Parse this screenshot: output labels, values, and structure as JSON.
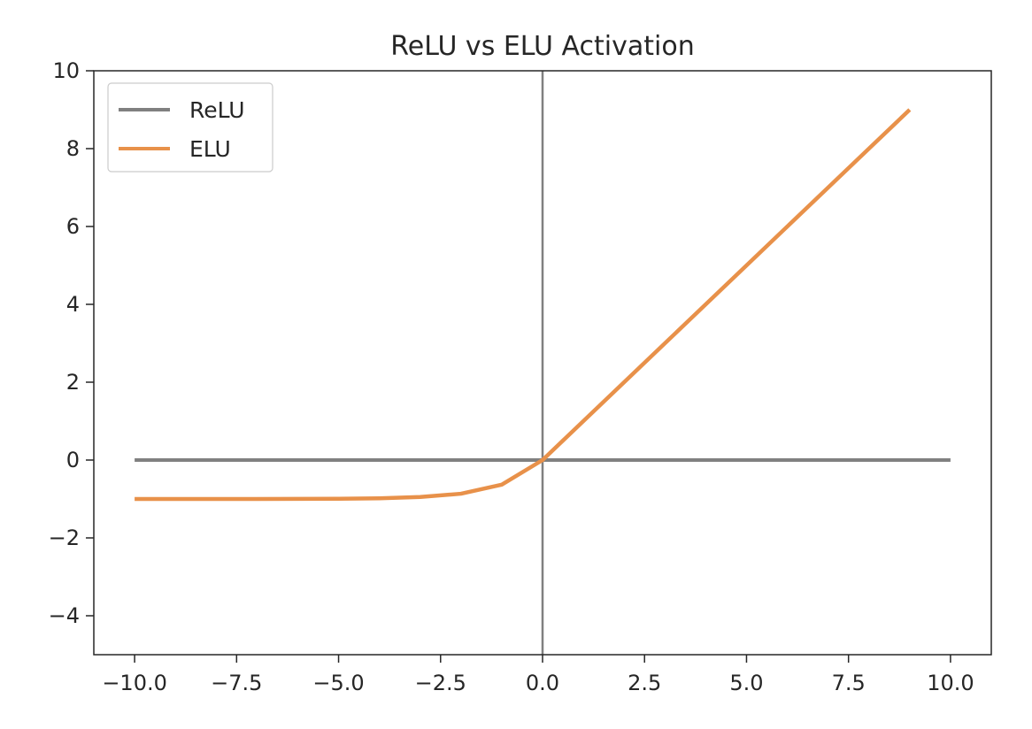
{
  "chart_data": {
    "type": "line",
    "title": "ReLU vs ELU Activation",
    "xlabel": "",
    "ylabel": "",
    "xlim": [
      -11,
      11
    ],
    "ylim": [
      -5,
      10
    ],
    "x_ticks": [
      -10.0,
      -7.5,
      -5.0,
      -2.5,
      0.0,
      2.5,
      5.0,
      7.5,
      10.0
    ],
    "x_tick_labels": [
      "−10.0",
      "−7.5",
      "−5.0",
      "−2.5",
      "0.0",
      "2.5",
      "5.0",
      "7.5",
      "10.0"
    ],
    "y_ticks": [
      -4,
      -2,
      0,
      2,
      4,
      6,
      8,
      10
    ],
    "y_tick_labels": [
      "−4",
      "−2",
      "0",
      "2",
      "4",
      "6",
      "8",
      "10"
    ],
    "grid": false,
    "legend_position": "top-left",
    "reference_lines": [
      {
        "orientation": "vertical",
        "x": 0,
        "color": "#808080"
      }
    ],
    "series": [
      {
        "name": "ReLU",
        "color": "#808080",
        "x": [
          -10,
          10
        ],
        "y": [
          0,
          0
        ]
      },
      {
        "name": "ELU",
        "color": "#e8914a",
        "x": [
          -10,
          -9,
          -8,
          -7,
          -6,
          -5,
          -4,
          -3,
          -2,
          -1,
          0,
          1,
          2,
          3,
          4,
          5,
          6,
          7,
          8,
          9
        ],
        "y": [
          -1.0,
          -1.0,
          -1.0,
          -1.0,
          -0.998,
          -0.993,
          -0.982,
          -0.95,
          -0.865,
          -0.632,
          0,
          1,
          2,
          3,
          4,
          5,
          6,
          7,
          8,
          9
        ]
      }
    ]
  }
}
